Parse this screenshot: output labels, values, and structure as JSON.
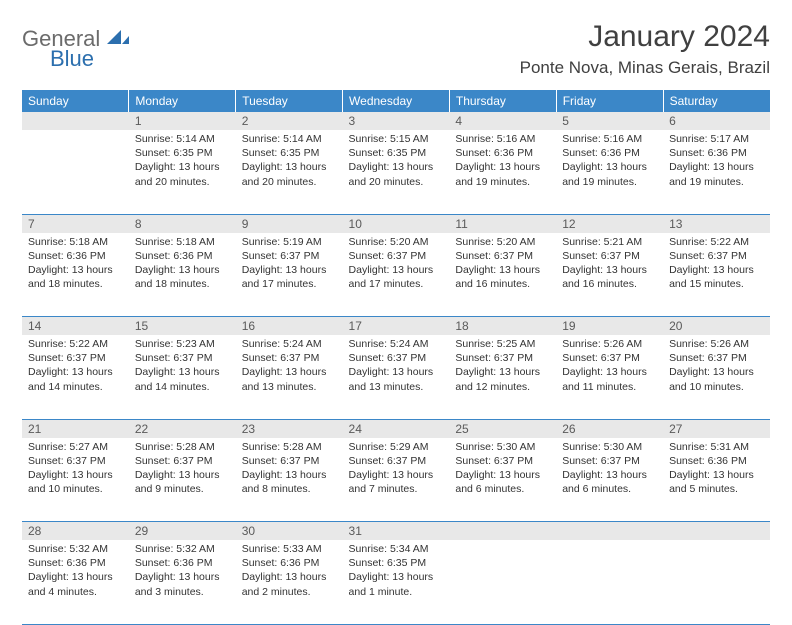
{
  "brand": {
    "word1": "General",
    "word2": "Blue"
  },
  "title": "January 2024",
  "location": "Ponte Nova, Minas Gerais, Brazil",
  "headerColor": "#3b87c8",
  "weekdays": [
    "Sunday",
    "Monday",
    "Tuesday",
    "Wednesday",
    "Thursday",
    "Friday",
    "Saturday"
  ],
  "weeks": [
    [
      null,
      {
        "n": "1",
        "sr": "Sunrise: 5:14 AM",
        "ss": "Sunset: 6:35 PM",
        "d1": "Daylight: 13 hours",
        "d2": "and 20 minutes."
      },
      {
        "n": "2",
        "sr": "Sunrise: 5:14 AM",
        "ss": "Sunset: 6:35 PM",
        "d1": "Daylight: 13 hours",
        "d2": "and 20 minutes."
      },
      {
        "n": "3",
        "sr": "Sunrise: 5:15 AM",
        "ss": "Sunset: 6:35 PM",
        "d1": "Daylight: 13 hours",
        "d2": "and 20 minutes."
      },
      {
        "n": "4",
        "sr": "Sunrise: 5:16 AM",
        "ss": "Sunset: 6:36 PM",
        "d1": "Daylight: 13 hours",
        "d2": "and 19 minutes."
      },
      {
        "n": "5",
        "sr": "Sunrise: 5:16 AM",
        "ss": "Sunset: 6:36 PM",
        "d1": "Daylight: 13 hours",
        "d2": "and 19 minutes."
      },
      {
        "n": "6",
        "sr": "Sunrise: 5:17 AM",
        "ss": "Sunset: 6:36 PM",
        "d1": "Daylight: 13 hours",
        "d2": "and 19 minutes."
      }
    ],
    [
      {
        "n": "7",
        "sr": "Sunrise: 5:18 AM",
        "ss": "Sunset: 6:36 PM",
        "d1": "Daylight: 13 hours",
        "d2": "and 18 minutes."
      },
      {
        "n": "8",
        "sr": "Sunrise: 5:18 AM",
        "ss": "Sunset: 6:36 PM",
        "d1": "Daylight: 13 hours",
        "d2": "and 18 minutes."
      },
      {
        "n": "9",
        "sr": "Sunrise: 5:19 AM",
        "ss": "Sunset: 6:37 PM",
        "d1": "Daylight: 13 hours",
        "d2": "and 17 minutes."
      },
      {
        "n": "10",
        "sr": "Sunrise: 5:20 AM",
        "ss": "Sunset: 6:37 PM",
        "d1": "Daylight: 13 hours",
        "d2": "and 17 minutes."
      },
      {
        "n": "11",
        "sr": "Sunrise: 5:20 AM",
        "ss": "Sunset: 6:37 PM",
        "d1": "Daylight: 13 hours",
        "d2": "and 16 minutes."
      },
      {
        "n": "12",
        "sr": "Sunrise: 5:21 AM",
        "ss": "Sunset: 6:37 PM",
        "d1": "Daylight: 13 hours",
        "d2": "and 16 minutes."
      },
      {
        "n": "13",
        "sr": "Sunrise: 5:22 AM",
        "ss": "Sunset: 6:37 PM",
        "d1": "Daylight: 13 hours",
        "d2": "and 15 minutes."
      }
    ],
    [
      {
        "n": "14",
        "sr": "Sunrise: 5:22 AM",
        "ss": "Sunset: 6:37 PM",
        "d1": "Daylight: 13 hours",
        "d2": "and 14 minutes."
      },
      {
        "n": "15",
        "sr": "Sunrise: 5:23 AM",
        "ss": "Sunset: 6:37 PM",
        "d1": "Daylight: 13 hours",
        "d2": "and 14 minutes."
      },
      {
        "n": "16",
        "sr": "Sunrise: 5:24 AM",
        "ss": "Sunset: 6:37 PM",
        "d1": "Daylight: 13 hours",
        "d2": "and 13 minutes."
      },
      {
        "n": "17",
        "sr": "Sunrise: 5:24 AM",
        "ss": "Sunset: 6:37 PM",
        "d1": "Daylight: 13 hours",
        "d2": "and 13 minutes."
      },
      {
        "n": "18",
        "sr": "Sunrise: 5:25 AM",
        "ss": "Sunset: 6:37 PM",
        "d1": "Daylight: 13 hours",
        "d2": "and 12 minutes."
      },
      {
        "n": "19",
        "sr": "Sunrise: 5:26 AM",
        "ss": "Sunset: 6:37 PM",
        "d1": "Daylight: 13 hours",
        "d2": "and 11 minutes."
      },
      {
        "n": "20",
        "sr": "Sunrise: 5:26 AM",
        "ss": "Sunset: 6:37 PM",
        "d1": "Daylight: 13 hours",
        "d2": "and 10 minutes."
      }
    ],
    [
      {
        "n": "21",
        "sr": "Sunrise: 5:27 AM",
        "ss": "Sunset: 6:37 PM",
        "d1": "Daylight: 13 hours",
        "d2": "and 10 minutes."
      },
      {
        "n": "22",
        "sr": "Sunrise: 5:28 AM",
        "ss": "Sunset: 6:37 PM",
        "d1": "Daylight: 13 hours",
        "d2": "and 9 minutes."
      },
      {
        "n": "23",
        "sr": "Sunrise: 5:28 AM",
        "ss": "Sunset: 6:37 PM",
        "d1": "Daylight: 13 hours",
        "d2": "and 8 minutes."
      },
      {
        "n": "24",
        "sr": "Sunrise: 5:29 AM",
        "ss": "Sunset: 6:37 PM",
        "d1": "Daylight: 13 hours",
        "d2": "and 7 minutes."
      },
      {
        "n": "25",
        "sr": "Sunrise: 5:30 AM",
        "ss": "Sunset: 6:37 PM",
        "d1": "Daylight: 13 hours",
        "d2": "and 6 minutes."
      },
      {
        "n": "26",
        "sr": "Sunrise: 5:30 AM",
        "ss": "Sunset: 6:37 PM",
        "d1": "Daylight: 13 hours",
        "d2": "and 6 minutes."
      },
      {
        "n": "27",
        "sr": "Sunrise: 5:31 AM",
        "ss": "Sunset: 6:36 PM",
        "d1": "Daylight: 13 hours",
        "d2": "and 5 minutes."
      }
    ],
    [
      {
        "n": "28",
        "sr": "Sunrise: 5:32 AM",
        "ss": "Sunset: 6:36 PM",
        "d1": "Daylight: 13 hours",
        "d2": "and 4 minutes."
      },
      {
        "n": "29",
        "sr": "Sunrise: 5:32 AM",
        "ss": "Sunset: 6:36 PM",
        "d1": "Daylight: 13 hours",
        "d2": "and 3 minutes."
      },
      {
        "n": "30",
        "sr": "Sunrise: 5:33 AM",
        "ss": "Sunset: 6:36 PM",
        "d1": "Daylight: 13 hours",
        "d2": "and 2 minutes."
      },
      {
        "n": "31",
        "sr": "Sunrise: 5:34 AM",
        "ss": "Sunset: 6:35 PM",
        "d1": "Daylight: 13 hours",
        "d2": "and 1 minute."
      },
      null,
      null,
      null
    ]
  ]
}
